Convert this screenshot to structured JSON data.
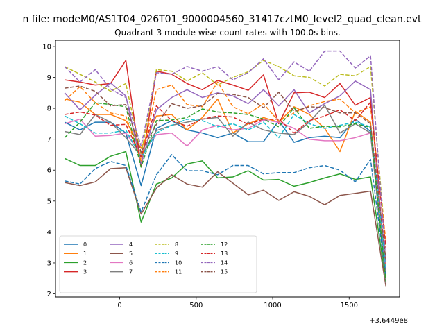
{
  "chart_data": {
    "type": "line",
    "suptitle": "n file: modeM0/AS1T04_026T01_9000004560_31417cztM0_level2_quad_clean.evt",
    "title": "Quadrant 3 module wise count rates with 100.0s bins.",
    "xlabel": "",
    "ylabel": "",
    "x_offset_label": "+3.6449e8",
    "xlim": [
      -420,
      1830
    ],
    "ylim": [
      1.9,
      10.2
    ],
    "xticks": [
      0,
      500,
      1000,
      1500
    ],
    "yticks": [
      2,
      3,
      4,
      5,
      6,
      7,
      8,
      9,
      10
    ],
    "grid": false,
    "legend_position": "lower-left",
    "legend_columns": 4,
    "x": [
      -360,
      -260,
      -160,
      -60,
      40,
      140,
      240,
      340,
      440,
      540,
      640,
      740,
      840,
      940,
      1040,
      1140,
      1240,
      1340,
      1440,
      1540,
      1640,
      1740
    ],
    "series": [
      {
        "name": "0",
        "style": "solid",
        "color": "#1f77b4",
        "values": [
          7.55,
          7.3,
          7.55,
          7.55,
          7.2,
          5.5,
          7.35,
          7.6,
          7.3,
          7.2,
          7.05,
          7.2,
          6.92,
          6.92,
          7.6,
          6.9,
          7.05,
          7.1,
          7.05,
          7.65,
          7.25,
          2.3
        ]
      },
      {
        "name": "1",
        "style": "solid",
        "color": "#ff7f0e",
        "values": [
          8.3,
          8.2,
          7.8,
          7.8,
          7.6,
          6.7,
          7.75,
          7.8,
          7.3,
          7.7,
          8.3,
          7.2,
          7.5,
          7.7,
          7.55,
          8.05,
          7.8,
          7.35,
          6.6,
          7.9,
          7.55,
          2.4
        ]
      },
      {
        "name": "2",
        "style": "solid",
        "color": "#2ca02c",
        "values": [
          6.38,
          6.15,
          6.15,
          6.45,
          6.6,
          4.32,
          5.55,
          5.75,
          6.2,
          6.3,
          5.75,
          5.78,
          5.98,
          5.68,
          5.7,
          5.48,
          5.6,
          5.75,
          5.88,
          5.7,
          5.78,
          2.4
        ]
      },
      {
        "name": "3",
        "style": "solid",
        "color": "#d62728",
        "values": [
          8.92,
          8.85,
          8.75,
          8.8,
          9.55,
          6.1,
          9.2,
          9.1,
          8.8,
          8.6,
          8.9,
          8.75,
          8.58,
          9.08,
          7.5,
          8.5,
          8.52,
          8.35,
          8.8,
          8.1,
          8.35,
          2.7
        ]
      },
      {
        "name": "4",
        "style": "solid",
        "color": "#9467bd",
        "values": [
          8.5,
          7.95,
          8.42,
          8.82,
          8.4,
          6.2,
          7.95,
          8.35,
          8.6,
          8.35,
          8.5,
          8.4,
          8.15,
          8.6,
          8.08,
          8.6,
          7.85,
          8.15,
          8.4,
          8.88,
          8.6,
          2.5
        ]
      },
      {
        "name": "5",
        "style": "solid",
        "color": "#8c564b",
        "values": [
          5.6,
          5.5,
          5.62,
          6.05,
          6.08,
          4.58,
          5.42,
          5.85,
          5.55,
          5.45,
          5.95,
          5.58,
          5.2,
          5.35,
          5.02,
          5.3,
          5.15,
          4.88,
          5.18,
          5.25,
          5.32,
          2.25
        ]
      },
      {
        "name": "6",
        "style": "solid",
        "color": "#e377c2",
        "values": [
          7.5,
          7.65,
          7.1,
          7.12,
          7.2,
          6.5,
          7.15,
          7.2,
          6.78,
          7.3,
          7.45,
          7.3,
          7.35,
          7.62,
          7.55,
          7.35,
          7.0,
          6.95,
          6.95,
          7.05,
          7.2,
          2.35
        ]
      },
      {
        "name": "7",
        "style": "solid",
        "color": "#7f7f7f",
        "values": [
          7.25,
          7.15,
          7.8,
          7.55,
          7.05,
          6.45,
          7.28,
          7.45,
          7.55,
          7.65,
          7.7,
          7.1,
          7.55,
          7.3,
          7.2,
          7.15,
          7.55,
          8.1,
          7.2,
          7.5,
          7.2,
          2.35
        ]
      },
      {
        "name": "8",
        "style": "dashed",
        "color": "#bcbd22",
        "values": [
          9.35,
          9.1,
          8.85,
          8.55,
          8.8,
          6.5,
          9.25,
          9.2,
          8.88,
          9.15,
          8.75,
          9.0,
          9.18,
          9.55,
          9.35,
          9.05,
          9.0,
          8.72,
          9.1,
          9.05,
          9.35,
          3.5
        ]
      },
      {
        "name": "9",
        "style": "dashed",
        "color": "#17becf",
        "values": [
          7.75,
          7.5,
          7.2,
          7.2,
          7.3,
          6.4,
          7.2,
          7.45,
          7.65,
          7.6,
          7.4,
          7.5,
          7.3,
          7.55,
          7.05,
          7.8,
          7.5,
          7.35,
          7.45,
          7.55,
          7.4,
          2.85
        ]
      },
      {
        "name": "10",
        "style": "dashed",
        "color": "#1f77b4",
        "values": [
          5.65,
          5.55,
          6.05,
          6.28,
          6.15,
          4.65,
          5.85,
          6.5,
          5.98,
          5.98,
          5.85,
          6.15,
          6.15,
          5.88,
          5.92,
          5.92,
          6.08,
          6.15,
          6.0,
          5.62,
          6.35,
          2.55
        ]
      },
      {
        "name": "11",
        "style": "dashed",
        "color": "#ff7f0e",
        "values": [
          8.25,
          8.7,
          8.18,
          7.85,
          7.75,
          6.3,
          8.6,
          8.75,
          8.12,
          8.05,
          8.85,
          8.05,
          7.82,
          8.15,
          7.58,
          7.85,
          8.08,
          8.22,
          8.3,
          7.85,
          8.05,
          3.7
        ]
      },
      {
        "name": "12",
        "style": "dashed",
        "color": "#2ca02c",
        "values": [
          7.05,
          7.55,
          8.18,
          8.12,
          8.05,
          6.1,
          7.6,
          7.62,
          7.7,
          7.98,
          7.88,
          7.85,
          7.8,
          7.65,
          7.4,
          8.02,
          7.35,
          7.42,
          7.4,
          7.5,
          7.38,
          2.4
        ]
      },
      {
        "name": "13",
        "style": "dashed",
        "color": "#d62728",
        "values": [
          7.8,
          7.88,
          7.78,
          7.45,
          7.48,
          6.42,
          8.08,
          7.6,
          7.42,
          7.65,
          7.75,
          7.72,
          7.48,
          7.65,
          7.65,
          7.2,
          7.6,
          7.75,
          7.95,
          7.6,
          8.2,
          3.5
        ]
      },
      {
        "name": "14",
        "style": "dashed",
        "color": "#9467bd",
        "values": [
          9.35,
          8.85,
          9.25,
          8.62,
          8.35,
          6.78,
          9.15,
          9.1,
          9.35,
          9.2,
          9.35,
          8.92,
          9.15,
          9.6,
          8.92,
          9.5,
          9.2,
          9.85,
          9.85,
          9.3,
          9.7,
          3.05
        ]
      },
      {
        "name": "15",
        "style": "dashed",
        "color": "#8c564b",
        "values": [
          8.65,
          8.72,
          8.55,
          8.08,
          8.12,
          6.58,
          7.48,
          8.15,
          8.0,
          8.08,
          8.48,
          8.45,
          8.35,
          8.02,
          8.52,
          7.9,
          8.05,
          8.02,
          7.85,
          7.85,
          7.5,
          3.1
        ]
      }
    ]
  }
}
